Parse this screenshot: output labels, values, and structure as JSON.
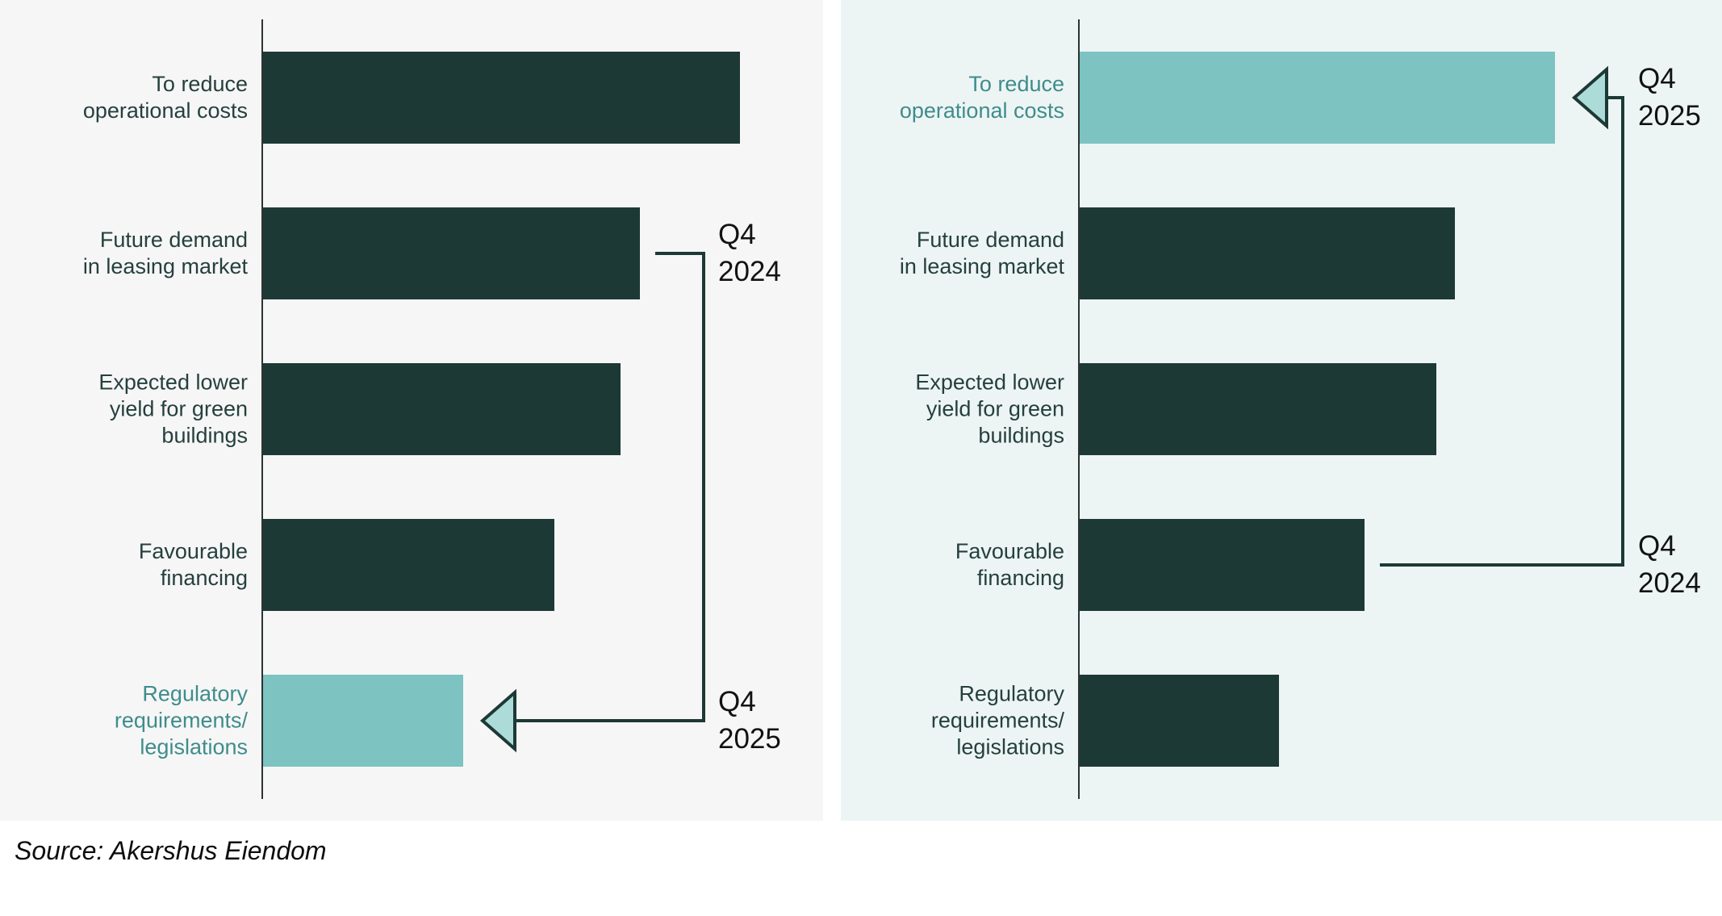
{
  "page": {
    "source_note": "Source: Akershus Eiendom"
  },
  "colors": {
    "page_background": "#ffffff",
    "left_panel_bg": "#f6f6f6",
    "right_panel_bg": "#edf5f4",
    "bar_dark": "#1d3936",
    "bar_highlight": "#7cc3c1",
    "label_dark": "#25403d",
    "label_highlight": "#3f8c8c",
    "annotation_text": "#121212",
    "annotation_line": "#1d3936",
    "arrowhead_fill": "#addbd8",
    "axis_line": "#2b3432"
  },
  "chart_data": [
    {
      "type": "bar",
      "orientation": "horizontal",
      "panel": "left",
      "title": "",
      "legend": null,
      "axis": {
        "value_axis_visible": false,
        "tick_labels": [],
        "baseline_visible": true
      },
      "categories": [
        "To reduce operational costs",
        "Future demand in leasing market",
        "Expected lower yield for green buildings",
        "Favourable financing",
        "Regulatory requirements/legislations"
      ],
      "category_lines": [
        [
          "To reduce",
          "operational costs"
        ],
        [
          "Future demand",
          "in leasing market"
        ],
        [
          "Expected lower",
          "yield for green",
          "buildings"
        ],
        [
          "Favourable",
          "financing"
        ],
        [
          "Regulatory",
          "requirements/",
          "legislations"
        ]
      ],
      "values_relative": [
        1.0,
        0.79,
        0.75,
        0.61,
        0.42
      ],
      "highlighted_index": 4,
      "annotations": [
        {
          "label": "Q4 2024",
          "label_lines": [
            "Q4",
            "2024"
          ],
          "attached_bar_index": 1,
          "role": "origin"
        },
        {
          "label": "Q4 2025",
          "label_lines": [
            "Q4",
            "2025"
          ],
          "attached_bar_index": 4,
          "role": "arrow-target"
        }
      ]
    },
    {
      "type": "bar",
      "orientation": "horizontal",
      "panel": "right",
      "title": "",
      "legend": null,
      "axis": {
        "value_axis_visible": false,
        "tick_labels": [],
        "baseline_visible": true
      },
      "categories": [
        "To reduce operational costs",
        "Future demand in leasing market",
        "Expected lower yield for green buildings",
        "Favourable financing",
        "Regulatory requirements/legislations"
      ],
      "category_lines": [
        [
          "To reduce",
          "operational costs"
        ],
        [
          "Future demand",
          "in leasing market"
        ],
        [
          "Expected lower",
          "yield for green",
          "buildings"
        ],
        [
          "Favourable",
          "financing"
        ],
        [
          "Regulatory",
          "requirements/",
          "legislations"
        ]
      ],
      "values_relative": [
        1.0,
        0.79,
        0.75,
        0.6,
        0.42
      ],
      "highlighted_index": 0,
      "annotations": [
        {
          "label": "Q4 2025",
          "label_lines": [
            "Q4",
            "2025"
          ],
          "attached_bar_index": 0,
          "role": "arrow-target"
        },
        {
          "label": "Q4 2024",
          "label_lines": [
            "Q4",
            "2024"
          ],
          "attached_bar_index": 3,
          "role": "origin"
        }
      ]
    }
  ]
}
